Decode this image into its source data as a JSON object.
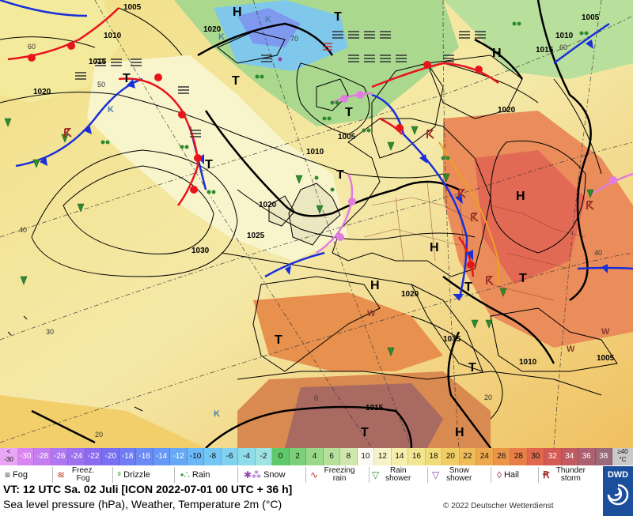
{
  "map": {
    "high_labels": [
      "H",
      "H",
      "H",
      "H",
      "H",
      "H"
    ],
    "low_labels": [
      "T",
      "T",
      "T",
      "T",
      "T",
      "T",
      "T",
      "T",
      "T",
      "T",
      "T"
    ],
    "pressure_labels": [
      "1005",
      "1010",
      "1015",
      "1020",
      "1020",
      "1010",
      "1005",
      "1015",
      "1020",
      "1025",
      "1030",
      "1020",
      "1015",
      "1010",
      "1005",
      "1015",
      "1010",
      "1020",
      "1005"
    ],
    "temperature_labels": [
      "60",
      "50",
      "40",
      "30",
      "20",
      "0",
      "20",
      "40",
      "60",
      "70"
    ],
    "warm_labels": [
      "W",
      "W",
      "W"
    ],
    "cold_labels": [
      "K",
      "K",
      "K",
      "K"
    ]
  },
  "temperature_scale": {
    "first_label_top": "<",
    "first_label_bottom": "-30",
    "last_label_top": "≥40",
    "last_label_bottom": "°C",
    "steps": [
      {
        "label": "-30",
        "color": "#d986f0"
      },
      {
        "label": "-28",
        "color": "#c47ef0"
      },
      {
        "label": "-26",
        "color": "#b078f0"
      },
      {
        "label": "-24",
        "color": "#9c72f0"
      },
      {
        "label": "-22",
        "color": "#8a6cf0"
      },
      {
        "label": "-20",
        "color": "#7a6ef2"
      },
      {
        "label": "-18",
        "color": "#6f7cf3"
      },
      {
        "label": "-16",
        "color": "#6a8af4"
      },
      {
        "label": "-14",
        "color": "#6698f5"
      },
      {
        "label": "-12",
        "color": "#66a8f6"
      },
      {
        "label": "-10",
        "color": "#6ab8f6"
      },
      {
        "label": "-8",
        "color": "#74c6f4"
      },
      {
        "label": "-6",
        "color": "#80d2f0"
      },
      {
        "label": "-4",
        "color": "#8edcea"
      },
      {
        "label": "-2",
        "color": "#9ee4e2"
      },
      {
        "label": "0",
        "color": "#5fc86a"
      },
      {
        "label": "2",
        "color": "#7cd07a"
      },
      {
        "label": "4",
        "color": "#9ad88a"
      },
      {
        "label": "6",
        "color": "#b6e09a"
      },
      {
        "label": "8",
        "color": "#d0e8ae"
      },
      {
        "label": "10",
        "color": "#fbfbf1"
      },
      {
        "label": "12",
        "color": "#f6f3c8"
      },
      {
        "label": "14",
        "color": "#f4efaa"
      },
      {
        "label": "16",
        "color": "#f2e690"
      },
      {
        "label": "18",
        "color": "#f1dc78"
      },
      {
        "label": "20",
        "color": "#f1cd66"
      },
      {
        "label": "22",
        "color": "#f0bc58"
      },
      {
        "label": "24",
        "color": "#eea94e"
      },
      {
        "label": "26",
        "color": "#ec9448"
      },
      {
        "label": "28",
        "color": "#e87e48"
      },
      {
        "label": "30",
        "color": "#e0684c"
      },
      {
        "label": "32",
        "color": "#d45a56"
      },
      {
        "label": "34",
        "color": "#c25a62"
      },
      {
        "label": "36",
        "color": "#ac6070"
      },
      {
        "label": "38",
        "color": "#9a6a7a"
      }
    ]
  },
  "weather_legend": [
    {
      "label": "Fog",
      "icon": "fog-icon",
      "color": "#333333"
    },
    {
      "label": "Freez. Fog",
      "icon": "freezing-fog-icon",
      "color": "#c0392b"
    },
    {
      "label": "Drizzle",
      "icon": "drizzle-icon",
      "color": "#2e8b2e"
    },
    {
      "label": "Rain",
      "icon": "rain-icon",
      "color": "#2e8b2e"
    },
    {
      "label": "Snow",
      "icon": "snow-icon",
      "color": "#8e44ad"
    },
    {
      "label": "Freezing rain",
      "icon": "freezing-rain-icon",
      "color": "#c0392b"
    },
    {
      "label": "Rain shower",
      "icon": "rain-shower-icon",
      "color": "#2e8b2e"
    },
    {
      "label": "Snow shower",
      "icon": "snow-shower-icon",
      "color": "#8e44ad"
    },
    {
      "label": "Hail",
      "icon": "hail-icon",
      "color": "#8e2b5a"
    },
    {
      "label": "Thunder storm",
      "icon": "thunderstorm-icon",
      "color": "#a0302a"
    }
  ],
  "footer": {
    "valid_time": "VT: 12 UTC Sa.  02 Juli [ICON 2022-07-01  00 UTC + 36 h]",
    "description": "Sea level pressure (hPa), Weather, Temperature 2m (°C)",
    "copyright": "© 2022 Deutscher Wetterdienst",
    "logo_text": "DWD"
  },
  "colors": {
    "warm_front": "#e8141c",
    "cold_front": "#1a2fd8",
    "occluded_front": "#e27ce0",
    "trough": "#f0a020",
    "land_border": "#000000",
    "isobar": "#000000"
  }
}
